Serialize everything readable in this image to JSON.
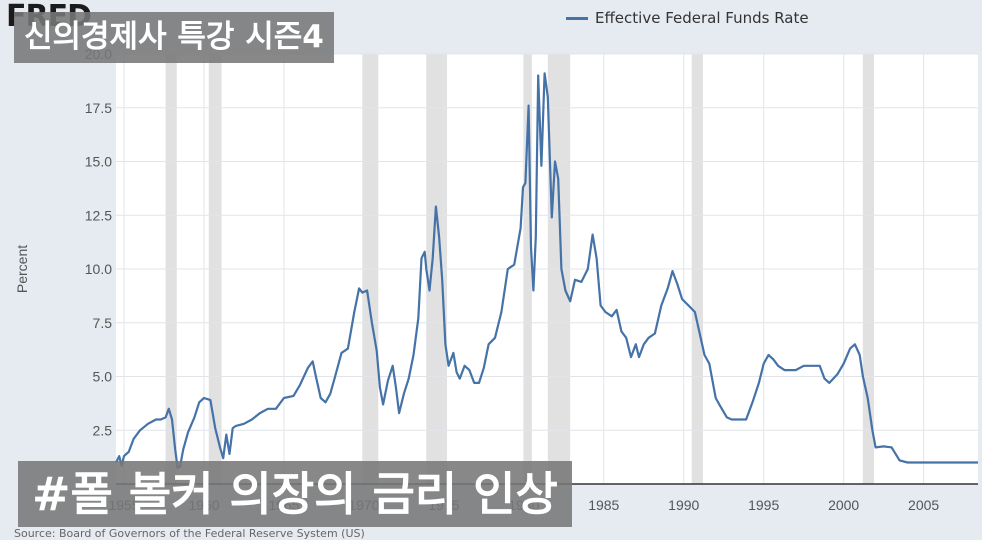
{
  "brand": "FRED",
  "overlay_top": "신의경제사 특강 시즌4",
  "overlay_bottom": "#폴 볼커 의장의 금리 인상",
  "source_text": "Source: Board of Governors of the Federal Reserve System (US)",
  "colors": {
    "line": "#4572a7",
    "background": "#e6eaf1",
    "plot": "#ffffff",
    "recession": "#e1e1e1",
    "grid": "#e1e5ea"
  },
  "chart_data": {
    "type": "line",
    "title": "",
    "legend": [
      "Effective Federal Funds Rate"
    ],
    "legend_position": "top",
    "ylabel": "Percent",
    "xlabel": "",
    "xlim": [
      1954.5,
      2008.4
    ],
    "ylim": [
      0,
      20
    ],
    "yticks": [
      {
        "v": 2.5,
        "label": "2.5"
      },
      {
        "v": 5,
        "label": "5.0"
      },
      {
        "v": 7.5,
        "label": "7.5"
      },
      {
        "v": 10,
        "label": "10.0"
      },
      {
        "v": 12.5,
        "label": "12.5"
      },
      {
        "v": 15,
        "label": "15.0"
      },
      {
        "v": 17.5,
        "label": "17.5"
      },
      {
        "v": 20,
        "label": "20.0"
      }
    ],
    "xticks": [
      {
        "v": 1955,
        "label": "1955"
      },
      {
        "v": 1960,
        "label": "1960"
      },
      {
        "v": 1965,
        "label": "1965"
      },
      {
        "v": 1970,
        "label": "1970"
      },
      {
        "v": 1975,
        "label": "1975"
      },
      {
        "v": 1980,
        "label": "1980"
      },
      {
        "v": 1985,
        "label": "1985"
      },
      {
        "v": 1990,
        "label": "1990"
      },
      {
        "v": 1995,
        "label": "1995"
      },
      {
        "v": 2000,
        "label": "2000"
      },
      {
        "v": 2005,
        "label": "2005"
      }
    ],
    "grid": true,
    "recessions": [
      [
        1957.6,
        1958.3
      ],
      [
        1960.3,
        1961.1
      ],
      [
        1969.9,
        1970.9
      ],
      [
        1973.9,
        1975.2
      ],
      [
        1980.0,
        1980.5
      ],
      [
        1981.5,
        1982.9
      ],
      [
        1990.5,
        1991.2
      ],
      [
        2001.2,
        2001.9
      ]
    ],
    "series": [
      {
        "name": "Effective Federal Funds Rate",
        "points": [
          [
            1954.5,
            1.0
          ],
          [
            1954.7,
            1.3
          ],
          [
            1954.85,
            0.85
          ],
          [
            1955.0,
            1.3
          ],
          [
            1955.3,
            1.5
          ],
          [
            1955.6,
            2.1
          ],
          [
            1956.0,
            2.5
          ],
          [
            1956.5,
            2.8
          ],
          [
            1957.0,
            3.0
          ],
          [
            1957.3,
            3.0
          ],
          [
            1957.6,
            3.1
          ],
          [
            1957.8,
            3.5
          ],
          [
            1958.0,
            3.0
          ],
          [
            1958.2,
            1.6
          ],
          [
            1958.35,
            0.75
          ],
          [
            1958.5,
            0.8
          ],
          [
            1958.7,
            1.6
          ],
          [
            1959.0,
            2.4
          ],
          [
            1959.4,
            3.1
          ],
          [
            1959.7,
            3.8
          ],
          [
            1960.0,
            4.0
          ],
          [
            1960.4,
            3.9
          ],
          [
            1960.7,
            2.6
          ],
          [
            1961.0,
            1.7
          ],
          [
            1961.2,
            1.2
          ],
          [
            1961.4,
            2.3
          ],
          [
            1961.6,
            1.4
          ],
          [
            1961.8,
            2.6
          ],
          [
            1962.0,
            2.7
          ],
          [
            1962.5,
            2.8
          ],
          [
            1963.0,
            3.0
          ],
          [
            1963.5,
            3.3
          ],
          [
            1964.0,
            3.5
          ],
          [
            1964.5,
            3.5
          ],
          [
            1965.0,
            4.0
          ],
          [
            1965.6,
            4.1
          ],
          [
            1966.0,
            4.6
          ],
          [
            1966.5,
            5.4
          ],
          [
            1966.8,
            5.7
          ],
          [
            1967.0,
            5.0
          ],
          [
            1967.3,
            4.0
          ],
          [
            1967.6,
            3.8
          ],
          [
            1967.9,
            4.2
          ],
          [
            1968.2,
            5.0
          ],
          [
            1968.6,
            6.1
          ],
          [
            1969.0,
            6.3
          ],
          [
            1969.4,
            8.0
          ],
          [
            1969.7,
            9.1
          ],
          [
            1969.9,
            8.9
          ],
          [
            1970.2,
            9.0
          ],
          [
            1970.5,
            7.5
          ],
          [
            1970.8,
            6.2
          ],
          [
            1971.0,
            4.5
          ],
          [
            1971.2,
            3.7
          ],
          [
            1971.5,
            4.8
          ],
          [
            1971.8,
            5.5
          ],
          [
            1972.0,
            4.5
          ],
          [
            1972.2,
            3.3
          ],
          [
            1972.5,
            4.2
          ],
          [
            1972.8,
            4.9
          ],
          [
            1973.1,
            6.0
          ],
          [
            1973.4,
            7.7
          ],
          [
            1973.6,
            10.5
          ],
          [
            1973.8,
            10.8
          ],
          [
            1973.9,
            10.0
          ],
          [
            1974.1,
            9.0
          ],
          [
            1974.3,
            10.5
          ],
          [
            1974.5,
            12.9
          ],
          [
            1974.7,
            11.5
          ],
          [
            1974.9,
            9.5
          ],
          [
            1975.1,
            6.5
          ],
          [
            1975.3,
            5.5
          ],
          [
            1975.6,
            6.1
          ],
          [
            1975.8,
            5.2
          ],
          [
            1976.0,
            4.9
          ],
          [
            1976.3,
            5.5
          ],
          [
            1976.6,
            5.3
          ],
          [
            1976.9,
            4.7
          ],
          [
            1977.2,
            4.7
          ],
          [
            1977.5,
            5.4
          ],
          [
            1977.8,
            6.5
          ],
          [
            1978.2,
            6.8
          ],
          [
            1978.6,
            8.0
          ],
          [
            1979.0,
            10.0
          ],
          [
            1979.4,
            10.2
          ],
          [
            1979.8,
            11.9
          ],
          [
            1979.95,
            13.8
          ],
          [
            1980.1,
            14.0
          ],
          [
            1980.3,
            17.6
          ],
          [
            1980.45,
            11.0
          ],
          [
            1980.6,
            9.0
          ],
          [
            1980.75,
            11.5
          ],
          [
            1980.9,
            19.0
          ],
          [
            1981.1,
            14.8
          ],
          [
            1981.3,
            19.1
          ],
          [
            1981.5,
            18.0
          ],
          [
            1981.75,
            12.4
          ],
          [
            1981.95,
            15.0
          ],
          [
            1982.15,
            14.2
          ],
          [
            1982.35,
            10.0
          ],
          [
            1982.6,
            9.0
          ],
          [
            1982.9,
            8.5
          ],
          [
            1983.2,
            9.5
          ],
          [
            1983.6,
            9.4
          ],
          [
            1984.0,
            10.0
          ],
          [
            1984.3,
            11.6
          ],
          [
            1984.55,
            10.5
          ],
          [
            1984.8,
            8.3
          ],
          [
            1985.1,
            8.0
          ],
          [
            1985.5,
            7.8
          ],
          [
            1985.8,
            8.1
          ],
          [
            1986.1,
            7.1
          ],
          [
            1986.4,
            6.8
          ],
          [
            1986.7,
            5.9
          ],
          [
            1987.0,
            6.5
          ],
          [
            1987.2,
            5.9
          ],
          [
            1987.5,
            6.5
          ],
          [
            1987.8,
            6.8
          ],
          [
            1988.2,
            7.0
          ],
          [
            1988.6,
            8.3
          ],
          [
            1989.0,
            9.1
          ],
          [
            1989.3,
            9.9
          ],
          [
            1989.6,
            9.3
          ],
          [
            1989.9,
            8.6
          ],
          [
            1990.3,
            8.3
          ],
          [
            1990.7,
            8.0
          ],
          [
            1991.0,
            7.0
          ],
          [
            1991.3,
            6.0
          ],
          [
            1991.6,
            5.6
          ],
          [
            1992.0,
            4.0
          ],
          [
            1992.3,
            3.6
          ],
          [
            1992.7,
            3.1
          ],
          [
            1993.0,
            3.0
          ],
          [
            1993.5,
            3.0
          ],
          [
            1993.9,
            3.0
          ],
          [
            1994.3,
            3.8
          ],
          [
            1994.7,
            4.7
          ],
          [
            1995.0,
            5.6
          ],
          [
            1995.3,
            6.0
          ],
          [
            1995.6,
            5.8
          ],
          [
            1995.9,
            5.5
          ],
          [
            1996.3,
            5.3
          ],
          [
            1996.7,
            5.3
          ],
          [
            1997.0,
            5.3
          ],
          [
            1997.5,
            5.5
          ],
          [
            1998.0,
            5.5
          ],
          [
            1998.5,
            5.5
          ],
          [
            1998.8,
            4.9
          ],
          [
            1999.1,
            4.7
          ],
          [
            1999.6,
            5.1
          ],
          [
            2000.0,
            5.6
          ],
          [
            2000.4,
            6.3
          ],
          [
            2000.7,
            6.5
          ],
          [
            2001.0,
            6.0
          ],
          [
            2001.2,
            5.0
          ],
          [
            2001.5,
            4.0
          ],
          [
            2001.8,
            2.5
          ],
          [
            2002.0,
            1.7
          ],
          [
            2002.5,
            1.75
          ],
          [
            2003.0,
            1.7
          ],
          [
            2003.5,
            1.1
          ],
          [
            2004.0,
            1.0
          ],
          [
            2004.5,
            1.0
          ],
          [
            2008.4,
            1.0
          ]
        ]
      }
    ]
  }
}
